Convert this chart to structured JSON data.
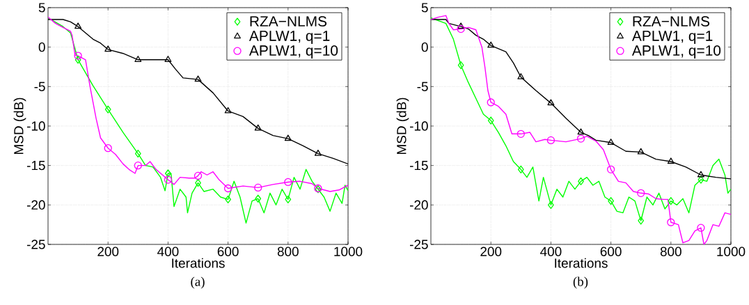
{
  "chart_data": [
    {
      "type": "line",
      "xlabel": "Iterations",
      "ylabel": "MSD (dB)",
      "annotations": [
        "(a)"
      ],
      "xlim": [
        0,
        1000
      ],
      "ylim": [
        -25,
        5
      ],
      "xticks": [
        200,
        400,
        600,
        800,
        1000
      ],
      "yticks": [
        -25,
        -20,
        -15,
        -10,
        -5,
        0,
        5
      ],
      "grid": true,
      "legend": "top right",
      "line_style": "solid",
      "series": [
        {
          "color": "#00ff00",
          "x": [
            0,
            50,
            75,
            100,
            150,
            200,
            250,
            300,
            325,
            350,
            375,
            390,
            400,
            410,
            420,
            440,
            460,
            465,
            480,
            500,
            520,
            550,
            575,
            600,
            620,
            640,
            660,
            680,
            700,
            720,
            740,
            760,
            780,
            800,
            820,
            840,
            860,
            880,
            900,
            920,
            940,
            960,
            980,
            990,
            1000
          ],
          "values": [
            3.7,
            2.6,
            1.8,
            -1.6,
            -4.9,
            -7.9,
            -10.8,
            -13.5,
            -15,
            -15.2,
            -16.5,
            -18.2,
            -16,
            -16,
            -20.2,
            -18,
            -19,
            -21,
            -18.5,
            -17.2,
            -18.3,
            -18,
            -19,
            -19.3,
            -17,
            -19,
            -22.3,
            -19.5,
            -19.2,
            -21,
            -18.5,
            -20,
            -18,
            -19.3,
            -16.5,
            -18,
            -15.5,
            -17,
            -18,
            -19,
            -20.8,
            -18.5,
            -19.8,
            -17.5,
            -18.2
          ]
        },
        {
          "color": "#000000",
          "x": [
            0,
            50,
            75,
            100,
            125,
            150,
            175,
            200,
            250,
            300,
            350,
            400,
            425,
            450,
            500,
            550,
            600,
            650,
            700,
            750,
            800,
            850,
            900,
            950,
            1000
          ],
          "values": [
            3.5,
            3.5,
            3.2,
            2.6,
            1.8,
            1.0,
            0.5,
            -0.3,
            -0.8,
            -1.6,
            -1.6,
            -1.6,
            -2.8,
            -3.9,
            -4.1,
            -5.8,
            -8.1,
            -8.8,
            -10.3,
            -11.2,
            -11.6,
            -12.5,
            -13.5,
            -14.1,
            -14.8
          ]
        },
        {
          "color": "#ff00ff",
          "x": [
            0,
            25,
            50,
            75,
            80,
            90,
            100,
            110,
            125,
            140,
            160,
            175,
            200,
            225,
            250,
            270,
            290,
            300,
            325,
            340,
            360,
            400,
            420,
            440,
            470,
            490,
            500,
            510,
            530,
            550,
            570,
            600,
            650,
            700,
            750,
            800,
            840,
            880,
            900,
            940,
            970,
            1000
          ],
          "values": [
            3.8,
            3.0,
            2.5,
            2.0,
            1.5,
            -1.0,
            -1.1,
            -1.3,
            -1.6,
            -5,
            -9,
            -11.5,
            -12.8,
            -13.6,
            -14.8,
            -15.5,
            -16,
            -15,
            -15,
            -14.5,
            -15.5,
            -16.8,
            -17.4,
            -16.5,
            -16.6,
            -16.6,
            -16.3,
            -15.8,
            -16.2,
            -15.8,
            -16.8,
            -17.9,
            -17.6,
            -17.8,
            -17.4,
            -17.1,
            -17,
            -17.3,
            -17.9,
            -18.3,
            -18.1,
            -17.5
          ]
        },
        {
          "type": "scatter",
          "name": "RZA−NLMS",
          "color": "#00ff00",
          "marker": "diamond",
          "x": [
            100,
            200,
            300,
            400,
            500,
            600,
            700,
            800,
            900
          ],
          "values": [
            -1.6,
            -7.9,
            -13.5,
            -16,
            -17.2,
            -19.3,
            -19.2,
            -19.3,
            -18
          ]
        },
        {
          "type": "scatter",
          "name": "APLW1, q=1",
          "color": "#000000",
          "marker": "triangle",
          "x": [
            100,
            200,
            300,
            400,
            500,
            600,
            700,
            800,
            900
          ],
          "values": [
            2.6,
            -0.3,
            -1.6,
            -1.6,
            -4.1,
            -8.1,
            -10.3,
            -11.6,
            -13.5
          ]
        },
        {
          "type": "scatter",
          "name": "APLW1, q=10",
          "color": "#ff00ff",
          "marker": "circle",
          "x": [
            100,
            200,
            300,
            400,
            500,
            600,
            700,
            800,
            900
          ],
          "values": [
            -1.1,
            -12.8,
            -15,
            -16.8,
            -16.3,
            -17.9,
            -17.8,
            -17.1,
            -17.9
          ]
        }
      ]
    },
    {
      "type": "line",
      "xlabel": "Iterations",
      "ylabel": "MSD (dB)",
      "annotations": [
        "(b)"
      ],
      "xlim": [
        0,
        1000
      ],
      "ylim": [
        -25,
        5
      ],
      "xticks": [
        200,
        400,
        600,
        800,
        1000
      ],
      "yticks": [
        -25,
        -20,
        -15,
        -10,
        -5,
        0,
        5
      ],
      "grid": true,
      "legend": "top right",
      "line_style": "solid",
      "series": [
        {
          "color": "#00ff00",
          "x": [
            0,
            50,
            75,
            100,
            125,
            150,
            175,
            200,
            225,
            250,
            275,
            300,
            320,
            340,
            360,
            375,
            400,
            420,
            440,
            460,
            480,
            500,
            520,
            540,
            560,
            580,
            600,
            620,
            640,
            660,
            680,
            700,
            720,
            740,
            760,
            780,
            800,
            820,
            840,
            860,
            880,
            900,
            920,
            940,
            960,
            980,
            990,
            1000
          ],
          "values": [
            3.7,
            3.0,
            1.0,
            -2.3,
            -4.5,
            -6.5,
            -8.5,
            -9.3,
            -10.8,
            -12.5,
            -14.5,
            -15.5,
            -16.5,
            -15.2,
            -19.5,
            -16.5,
            -20,
            -18,
            -19,
            -17,
            -18,
            -17,
            -16.5,
            -17.5,
            -17,
            -19,
            -19.5,
            -20.8,
            -21,
            -19,
            -19.5,
            -22,
            -19,
            -20,
            -18.5,
            -20.5,
            -19.5,
            -20,
            -19.2,
            -21,
            -17.5,
            -16.8,
            -17,
            -15,
            -14.2,
            -16.2,
            -18.5,
            -18
          ]
        },
        {
          "color": "#000000",
          "x": [
            0,
            50,
            60,
            100,
            125,
            150,
            175,
            200,
            250,
            275,
            300,
            350,
            400,
            450,
            500,
            525,
            550,
            600,
            650,
            700,
            750,
            800,
            850,
            900,
            950,
            1000
          ],
          "values": [
            3.5,
            3.5,
            3.0,
            2.6,
            2.3,
            1.5,
            1.0,
            0.2,
            -0.6,
            -2,
            -3.8,
            -5.5,
            -7.1,
            -9,
            -10.8,
            -11.2,
            -11.8,
            -12.1,
            -13.2,
            -13.3,
            -14.2,
            -14.5,
            -15.2,
            -16.2,
            -16.5,
            -16.7
          ]
        },
        {
          "color": "#ff00ff",
          "x": [
            0,
            25,
            50,
            60,
            75,
            100,
            125,
            150,
            170,
            180,
            190,
            200,
            225,
            250,
            270,
            300,
            330,
            350,
            380,
            400,
            450,
            500,
            520,
            550,
            575,
            600,
            625,
            650,
            675,
            700,
            725,
            750,
            775,
            790,
            800,
            825,
            840,
            860,
            880,
            900,
            910,
            920,
            940,
            960,
            980,
            1000
          ],
          "values": [
            3.5,
            3.8,
            4.0,
            3.0,
            2.2,
            2.3,
            2.5,
            2.2,
            0,
            -2.5,
            -5.5,
            -7.0,
            -7.5,
            -8.5,
            -11,
            -11,
            -10.8,
            -12,
            -11.7,
            -11.8,
            -12,
            -11.6,
            -11.3,
            -11.9,
            -13,
            -15.5,
            -17,
            -17.2,
            -18.3,
            -18.5,
            -18.6,
            -19.2,
            -19.3,
            -19.3,
            -22.2,
            -22.5,
            -24.8,
            -24.5,
            -23.3,
            -22.9,
            -25,
            -24.5,
            -22.5,
            -22.7,
            -21,
            -21.2
          ]
        },
        {
          "type": "scatter",
          "name": "RZA−NLMS",
          "color": "#00ff00",
          "marker": "diamond",
          "x": [
            100,
            200,
            300,
            400,
            500,
            600,
            700,
            800,
            900
          ],
          "values": [
            -2.3,
            -9.3,
            -15.5,
            -20,
            -17,
            -19.5,
            -22,
            -19.5,
            -16.8
          ]
        },
        {
          "type": "scatter",
          "name": "APLW1, q=1",
          "color": "#000000",
          "marker": "triangle",
          "x": [
            100,
            200,
            300,
            400,
            500,
            600,
            700,
            800,
            900
          ],
          "values": [
            2.6,
            0.2,
            -3.8,
            -7.1,
            -10.8,
            -12.1,
            -13.3,
            -14.5,
            -16.2
          ]
        },
        {
          "type": "scatter",
          "name": "APLW1, q=10",
          "color": "#ff00ff",
          "marker": "circle",
          "x": [
            100,
            200,
            300,
            400,
            500,
            600,
            700,
            800,
            900
          ],
          "values": [
            2.3,
            -7.0,
            -11,
            -11.8,
            -11.6,
            -15.5,
            -18.5,
            -22.2,
            -22.9
          ]
        }
      ]
    }
  ]
}
